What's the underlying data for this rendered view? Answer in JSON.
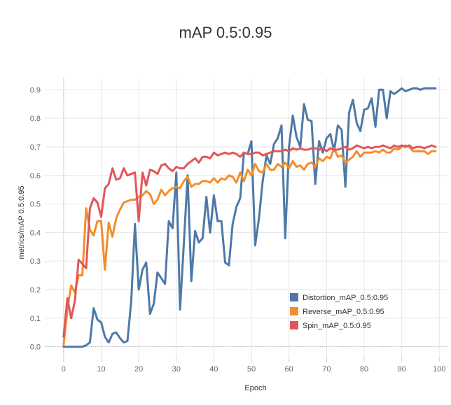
{
  "chart_data": {
    "type": "line",
    "title": "mAP 0.5:0.95",
    "xlabel": "Epoch",
    "ylabel": "metrics/mAP 0.5:0.95",
    "xlim": [
      -5,
      102
    ],
    "ylim": [
      -0.04,
      0.94
    ],
    "xticks": [
      0,
      10,
      20,
      30,
      40,
      50,
      60,
      70,
      80,
      90,
      100
    ],
    "yticks": [
      0.0,
      0.1,
      0.2,
      0.3,
      0.4,
      0.5,
      0.6,
      0.7,
      0.8,
      0.9
    ],
    "ytick_labels": [
      "0.0",
      "0.1",
      "0.2",
      "0.3",
      "0.4",
      "0.5",
      "0.6",
      "0.7",
      "0.8",
      "0.9"
    ],
    "grid": true,
    "legend_position": "bottom-right",
    "series": [
      {
        "name": "Distortion_mAP_0.5:0.95",
        "color": "#4e79a7",
        "x": [
          0,
          1,
          2,
          3,
          4,
          5,
          6,
          7,
          8,
          9,
          10,
          11,
          12,
          13,
          14,
          15,
          16,
          17,
          18,
          19,
          20,
          21,
          22,
          23,
          24,
          25,
          26,
          27,
          28,
          29,
          30,
          31,
          32,
          33,
          34,
          35,
          36,
          37,
          38,
          39,
          40,
          41,
          42,
          43,
          44,
          45,
          46,
          47,
          48,
          49,
          50,
          51,
          52,
          53,
          54,
          55,
          56,
          57,
          58,
          59,
          60,
          61,
          62,
          63,
          64,
          65,
          66,
          67,
          68,
          69,
          70,
          71,
          72,
          73,
          74,
          75,
          76,
          77,
          78,
          79,
          80,
          81,
          82,
          83,
          84,
          85,
          86,
          87,
          88,
          89,
          90,
          91,
          92,
          93,
          94,
          95,
          96,
          97,
          98,
          99
        ],
        "y": [
          0.0,
          0.0,
          0.0,
          0.0,
          0.0,
          0.0,
          0.005,
          0.015,
          0.135,
          0.095,
          0.085,
          0.035,
          0.015,
          0.045,
          0.05,
          0.03,
          0.015,
          0.02,
          0.16,
          0.43,
          0.2,
          0.27,
          0.295,
          0.115,
          0.15,
          0.26,
          0.24,
          0.22,
          0.44,
          0.415,
          0.61,
          0.13,
          0.36,
          0.6,
          0.23,
          0.405,
          0.365,
          0.38,
          0.525,
          0.4,
          0.53,
          0.44,
          0.44,
          0.295,
          0.285,
          0.43,
          0.49,
          0.52,
          0.68,
          0.675,
          0.72,
          0.355,
          0.45,
          0.58,
          0.67,
          0.64,
          0.71,
          0.73,
          0.775,
          0.38,
          0.7,
          0.81,
          0.735,
          0.7,
          0.85,
          0.795,
          0.79,
          0.57,
          0.72,
          0.68,
          0.73,
          0.745,
          0.685,
          0.775,
          0.76,
          0.56,
          0.82,
          0.865,
          0.785,
          0.755,
          0.83,
          0.835,
          0.87,
          0.77,
          0.9,
          0.9,
          0.8,
          0.895,
          0.885,
          0.895,
          0.905,
          0.895,
          0.9,
          0.905,
          0.905,
          0.9,
          0.905,
          0.905,
          0.905,
          0.905
        ]
      },
      {
        "name": "Reverse_mAP_0.5:0.95",
        "color": "#f28e2b",
        "x": [
          0,
          1,
          2,
          3,
          4,
          5,
          6,
          7,
          8,
          9,
          10,
          11,
          12,
          13,
          14,
          15,
          16,
          17,
          18,
          19,
          20,
          21,
          22,
          23,
          24,
          25,
          26,
          27,
          28,
          29,
          30,
          31,
          32,
          33,
          34,
          35,
          36,
          37,
          38,
          39,
          40,
          41,
          42,
          43,
          44,
          45,
          46,
          47,
          48,
          49,
          50,
          51,
          52,
          53,
          54,
          55,
          56,
          57,
          58,
          59,
          60,
          61,
          62,
          63,
          64,
          65,
          66,
          67,
          68,
          69,
          70,
          71,
          72,
          73,
          74,
          75,
          76,
          77,
          78,
          79,
          80,
          81,
          82,
          83,
          84,
          85,
          86,
          87,
          88,
          89,
          90,
          91,
          92,
          93,
          94,
          95,
          96,
          97,
          98,
          99
        ],
        "y": [
          0.005,
          0.13,
          0.215,
          0.19,
          0.25,
          0.25,
          0.485,
          0.41,
          0.39,
          0.44,
          0.44,
          0.27,
          0.435,
          0.385,
          0.45,
          0.48,
          0.505,
          0.51,
          0.515,
          0.515,
          0.525,
          0.53,
          0.545,
          0.535,
          0.5,
          0.515,
          0.55,
          0.53,
          0.545,
          0.555,
          0.56,
          0.555,
          0.58,
          0.595,
          0.56,
          0.57,
          0.57,
          0.58,
          0.58,
          0.575,
          0.59,
          0.575,
          0.59,
          0.585,
          0.6,
          0.595,
          0.575,
          0.61,
          0.58,
          0.62,
          0.6,
          0.64,
          0.615,
          0.61,
          0.64,
          0.62,
          0.62,
          0.64,
          0.63,
          0.645,
          0.625,
          0.65,
          0.63,
          0.635,
          0.62,
          0.64,
          0.645,
          0.63,
          0.66,
          0.65,
          0.665,
          0.66,
          0.695,
          0.665,
          0.67,
          0.645,
          0.655,
          0.665,
          0.685,
          0.665,
          0.68,
          0.68,
          0.68,
          0.685,
          0.68,
          0.69,
          0.68,
          0.68,
          0.695,
          0.69,
          0.7,
          0.705,
          0.7,
          0.685,
          0.685,
          0.685,
          0.685,
          0.675,
          0.685,
          0.685
        ]
      },
      {
        "name": "Spin_mAP_0.5:0.95",
        "color": "#e15759",
        "x": [
          0,
          1,
          2,
          3,
          4,
          5,
          6,
          7,
          8,
          9,
          10,
          11,
          12,
          13,
          14,
          15,
          16,
          17,
          18,
          19,
          20,
          21,
          22,
          23,
          24,
          25,
          26,
          27,
          28,
          29,
          30,
          31,
          32,
          33,
          34,
          35,
          36,
          37,
          38,
          39,
          40,
          41,
          42,
          43,
          44,
          45,
          46,
          47,
          48,
          49,
          50,
          51,
          52,
          53,
          54,
          55,
          56,
          57,
          58,
          59,
          60,
          61,
          62,
          63,
          64,
          65,
          66,
          67,
          68,
          69,
          70,
          71,
          72,
          73,
          74,
          75,
          76,
          77,
          78,
          79,
          80,
          81,
          82,
          83,
          84,
          85,
          86,
          87,
          88,
          89,
          90,
          91,
          92,
          93,
          94,
          95,
          96,
          97,
          98,
          99
        ],
        "y": [
          0.035,
          0.17,
          0.1,
          0.16,
          0.305,
          0.29,
          0.275,
          0.485,
          0.52,
          0.505,
          0.455,
          0.555,
          0.57,
          0.625,
          0.585,
          0.59,
          0.625,
          0.6,
          0.605,
          0.61,
          0.44,
          0.61,
          0.565,
          0.62,
          0.615,
          0.605,
          0.635,
          0.64,
          0.625,
          0.615,
          0.63,
          0.625,
          0.625,
          0.64,
          0.65,
          0.66,
          0.645,
          0.665,
          0.665,
          0.66,
          0.68,
          0.67,
          0.675,
          0.68,
          0.675,
          0.68,
          0.675,
          0.665,
          0.68,
          0.675,
          0.675,
          0.68,
          0.68,
          0.67,
          0.675,
          0.68,
          0.685,
          0.685,
          0.685,
          0.69,
          0.685,
          0.695,
          0.69,
          0.695,
          0.69,
          0.69,
          0.695,
          0.695,
          0.69,
          0.695,
          0.685,
          0.695,
          0.69,
          0.69,
          0.695,
          0.7,
          0.69,
          0.695,
          0.705,
          0.7,
          0.695,
          0.7,
          0.695,
          0.7,
          0.7,
          0.705,
          0.7,
          0.695,
          0.705,
          0.7,
          0.705,
          0.7,
          0.705,
          0.695,
          0.7,
          0.7,
          0.695,
          0.7,
          0.705,
          0.7
        ]
      }
    ]
  }
}
